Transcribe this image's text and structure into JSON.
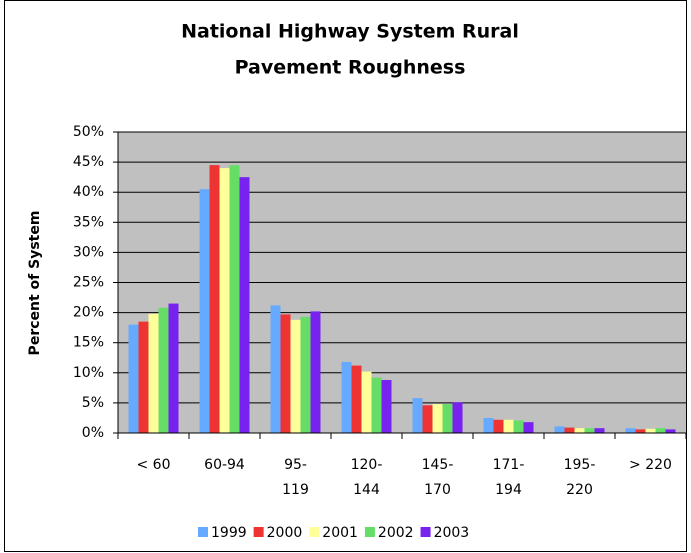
{
  "chart_data": {
    "type": "bar",
    "title": [
      "National Highway System Rural",
      "Pavement Roughness"
    ],
    "y_label": "Percent of System",
    "categories": [
      "< 60",
      "60-94",
      "95-119",
      "120-144",
      "145-170",
      "171-194",
      "195-220",
      "> 220"
    ],
    "series": [
      {
        "name": "1999",
        "color": "#66aaff",
        "values": [
          18,
          40.5,
          21.2,
          11.8,
          5.8,
          2.5,
          1.1,
          0.8
        ]
      },
      {
        "name": "2000",
        "color": "#ee3333",
        "values": [
          18.5,
          44.5,
          19.7,
          11.2,
          4.6,
          2.2,
          0.9,
          0.6
        ]
      },
      {
        "name": "2001",
        "color": "#ffff99",
        "values": [
          19.8,
          44,
          18.8,
          10.2,
          4.8,
          2.2,
          0.8,
          0.7
        ]
      },
      {
        "name": "2002",
        "color": "#66dd66",
        "values": [
          20.8,
          44.5,
          19.3,
          9.2,
          4.8,
          2.1,
          0.8,
          0.8
        ]
      },
      {
        "name": "2003",
        "color": "#7722ee",
        "values": [
          21.5,
          42.5,
          20.2,
          8.8,
          5.1,
          1.8,
          0.8,
          0.6
        ]
      }
    ],
    "ylim": [
      0,
      50
    ],
    "yticks": [
      {
        "value": 0,
        "label": "0%"
      },
      {
        "value": 5,
        "label": "5%"
      },
      {
        "value": 10,
        "label": "10%"
      },
      {
        "value": 15,
        "label": "15%"
      },
      {
        "value": 20,
        "label": "20%"
      },
      {
        "value": 25,
        "label": "25%"
      },
      {
        "value": 30,
        "label": "30%"
      },
      {
        "value": 35,
        "label": "35%"
      },
      {
        "value": 40,
        "label": "40%"
      },
      {
        "value": 45,
        "label": "45%"
      },
      {
        "value": 50,
        "label": "50%"
      }
    ],
    "grid": true,
    "legend": "bottom",
    "plot_background": "#c0c0c0"
  }
}
